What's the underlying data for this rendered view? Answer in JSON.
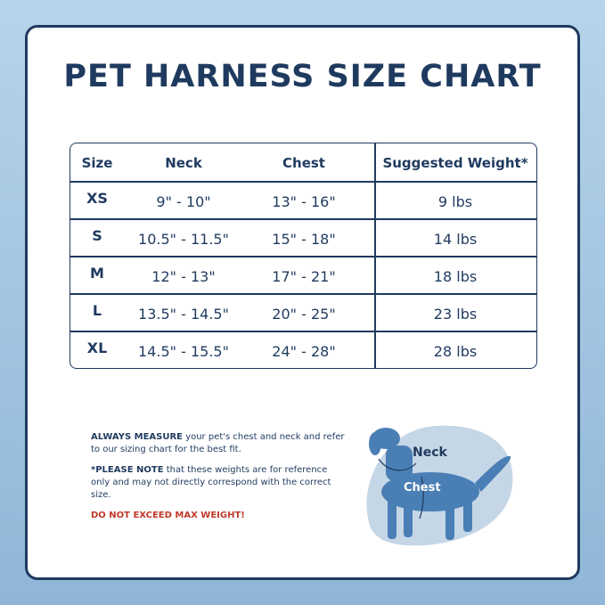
{
  "title": "PET HARNESS SIZE CHART",
  "table": {
    "header": [
      "Size",
      "Neck",
      "Chest",
      "Suggested Weight*"
    ],
    "rows": [
      [
        "XS",
        "9\" - 10\"",
        "13\" - 16\"",
        "9 lbs"
      ],
      [
        "S",
        "10.5\" - 11.5\"",
        "15\" - 18\"",
        "14 lbs"
      ],
      [
        "M",
        "12\" - 13\"",
        "17\" - 21\"",
        "18 lbs"
      ],
      [
        "L",
        "13.5\" - 14.5\"",
        "20\" - 25\"",
        "23 lbs"
      ],
      [
        "XL",
        "14.5\" - 15.5\"",
        "24\" - 28\"",
        "28 lbs"
      ]
    ]
  },
  "notes": [
    {
      "bold": "ALWAYS MEASURE",
      "text": "your pet's chest and neck and refer to our sizing chart for the best fit."
    },
    {
      "bold": "*PLEASE NOTE",
      "text": "that these weights are for reference only and may not directly correspond with the correct size."
    },
    {
      "bold": "DO NOT EXCEED MAX WEIGHT!"
    }
  ],
  "figure": {
    "neck_label": "Neck",
    "chest_label": "Chest"
  }
}
